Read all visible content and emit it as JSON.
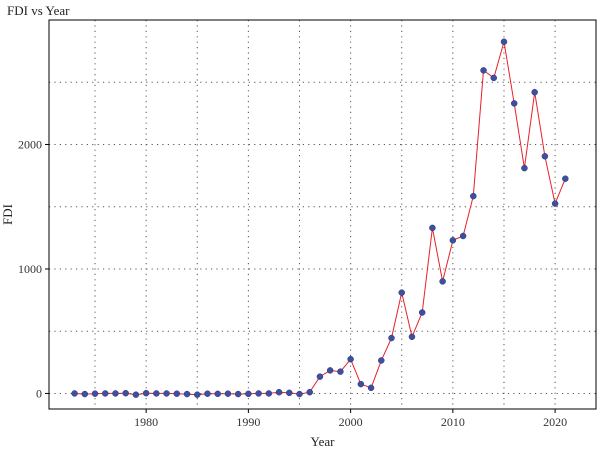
{
  "chart_data": {
    "type": "line",
    "title": "FDI vs Year",
    "xlabel": "Year",
    "ylabel": "FDI",
    "xlim": [
      1970.5,
      2024
    ],
    "ylim": [
      -125,
      3000
    ],
    "x_ticks": [
      1980,
      1990,
      2000,
      2010,
      2020
    ],
    "y_ticks": [
      0,
      1000,
      2000
    ],
    "x_grid": [
      1975,
      1980,
      1985,
      1990,
      1995,
      2000,
      2005,
      2010,
      2015,
      2020
    ],
    "y_grid": [
      0,
      500,
      1000,
      1500,
      2000,
      2500
    ],
    "grid": true,
    "legend": "none",
    "colors": {
      "line": "#e8202a",
      "marker": "#3f4fa0",
      "grid": "#555555",
      "frame": "#000000"
    },
    "series": [
      {
        "x": [
          1973,
          1974,
          1975,
          1976,
          1977,
          1978,
          1979,
          1980,
          1981,
          1982,
          1983,
          1984,
          1985,
          1986,
          1987,
          1988,
          1989,
          1990,
          1991,
          1992,
          1993,
          1994,
          1995,
          1996,
          1997,
          1998,
          1999,
          2000,
          2001,
          2002,
          2003,
          2004,
          2005,
          2006,
          2007,
          2008,
          2009,
          2010,
          2011,
          2012,
          2013,
          2014,
          2015,
          2016,
          2017,
          2018,
          2019,
          2020,
          2021
        ],
        "y": [
          0,
          -5,
          -2,
          0,
          0,
          2,
          -10,
          2,
          0,
          0,
          -2,
          -5,
          -10,
          -2,
          -3,
          -2,
          -5,
          -3,
          0,
          0,
          10,
          5,
          -5,
          10,
          135,
          185,
          175,
          275,
          75,
          45,
          265,
          445,
          810,
          455,
          650,
          1330,
          900,
          1230,
          1265,
          1585,
          2595,
          2535,
          2825,
          2330,
          1810,
          2420,
          1905,
          1525,
          1725
        ]
      }
    ]
  }
}
